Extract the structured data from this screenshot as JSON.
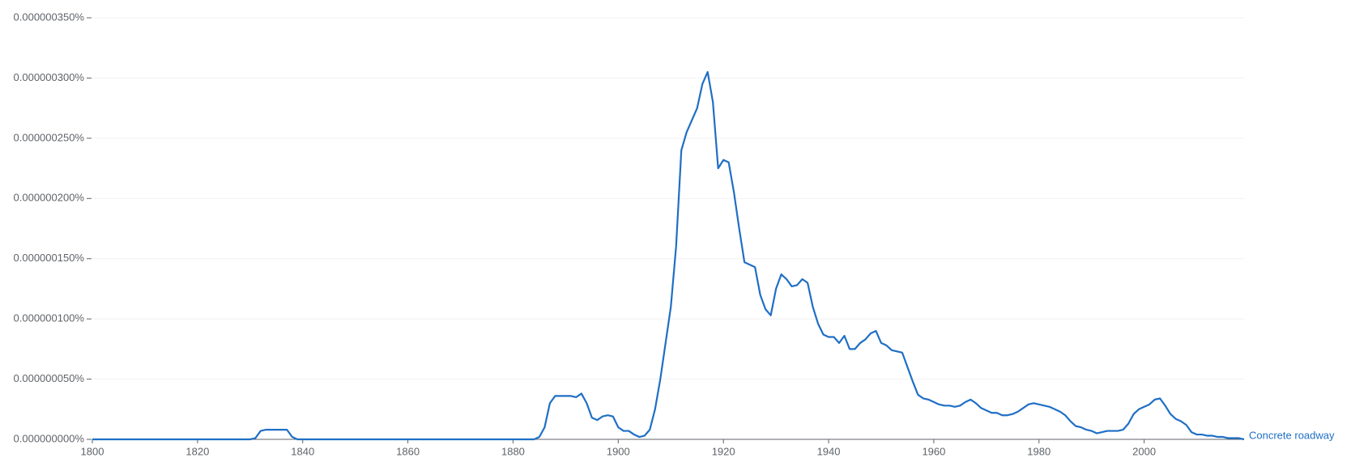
{
  "chart_data": {
    "type": "line",
    "x": [
      1800,
      1830,
      1831,
      1832,
      1833,
      1834,
      1835,
      1836,
      1837,
      1838,
      1839,
      1884,
      1885,
      1886,
      1887,
      1888,
      1889,
      1890,
      1891,
      1892,
      1893,
      1894,
      1895,
      1896,
      1897,
      1898,
      1899,
      1900,
      1901,
      1902,
      1903,
      1904,
      1905,
      1906,
      1907,
      1908,
      1909,
      1910,
      1911,
      1912,
      1913,
      1914,
      1915,
      1916,
      1917,
      1918,
      1919,
      1920,
      1921,
      1922,
      1923,
      1924,
      1925,
      1926,
      1927,
      1928,
      1929,
      1930,
      1931,
      1932,
      1933,
      1934,
      1935,
      1936,
      1937,
      1938,
      1939,
      1940,
      1941,
      1942,
      1943,
      1944,
      1945,
      1946,
      1947,
      1948,
      1949,
      1950,
      1951,
      1952,
      1953,
      1954,
      1955,
      1956,
      1957,
      1958,
      1959,
      1960,
      1961,
      1962,
      1963,
      1964,
      1965,
      1966,
      1967,
      1968,
      1969,
      1970,
      1971,
      1972,
      1973,
      1974,
      1975,
      1976,
      1977,
      1978,
      1979,
      1980,
      1981,
      1982,
      1983,
      1984,
      1985,
      1986,
      1987,
      1988,
      1989,
      1990,
      1991,
      1992,
      1993,
      1994,
      1995,
      1996,
      1997,
      1998,
      1999,
      2000,
      2001,
      2002,
      2003,
      2004,
      2005,
      2006,
      2007,
      2008,
      2009,
      2010,
      2011,
      2012,
      2013,
      2014,
      2015,
      2016,
      2017,
      2018,
      2019
    ],
    "series": [
      {
        "name": "Concrete roadway",
        "color": "#1f6fc5",
        "values": [
          0,
          0,
          1e-09,
          7e-09,
          8e-09,
          8e-09,
          8e-09,
          8e-09,
          8e-09,
          2e-09,
          0,
          0,
          2e-09,
          1e-08,
          3e-08,
          3.6e-08,
          3.6e-08,
          3.6e-08,
          3.6e-08,
          3.5e-08,
          3.8e-08,
          3e-08,
          1.8e-08,
          1.6e-08,
          1.9e-08,
          2e-08,
          1.9e-08,
          1e-08,
          7e-09,
          7e-09,
          4e-09,
          2e-09,
          3e-09,
          8e-09,
          2.5e-08,
          5e-08,
          8e-08,
          1.1e-07,
          1.6e-07,
          2.4e-07,
          2.55e-07,
          2.65e-07,
          2.75e-07,
          2.95e-07,
          3.05e-07,
          2.8e-07,
          2.25e-07,
          2.32e-07,
          2.3e-07,
          2.05e-07,
          1.75e-07,
          1.47e-07,
          1.45e-07,
          1.43e-07,
          1.2e-07,
          1.08e-07,
          1.03e-07,
          1.25e-07,
          1.37e-07,
          1.33e-07,
          1.27e-07,
          1.28e-07,
          1.33e-07,
          1.3e-07,
          1.1e-07,
          9.6e-08,
          8.7e-08,
          8.5e-08,
          8.5e-08,
          8e-08,
          8.6e-08,
          7.5e-08,
          7.5e-08,
          8e-08,
          8.3e-08,
          8.8e-08,
          9e-08,
          8e-08,
          7.8e-08,
          7.4e-08,
          7.3e-08,
          7.2e-08,
          6e-08,
          4.8e-08,
          3.7e-08,
          3.4e-08,
          3.3e-08,
          3.1e-08,
          2.9e-08,
          2.8e-08,
          2.8e-08,
          2.7e-08,
          2.8e-08,
          3.1e-08,
          3.3e-08,
          3e-08,
          2.6e-08,
          2.4e-08,
          2.2e-08,
          2.2e-08,
          2e-08,
          2e-08,
          2.1e-08,
          2.3e-08,
          2.6e-08,
          2.9e-08,
          3e-08,
          2.9e-08,
          2.8e-08,
          2.7e-08,
          2.5e-08,
          2.3e-08,
          2e-08,
          1.5e-08,
          1.1e-08,
          1e-08,
          8e-09,
          7e-09,
          5e-09,
          6e-09,
          7e-09,
          7e-09,
          7e-09,
          8e-09,
          1.3e-08,
          2.1e-08,
          2.5e-08,
          2.7e-08,
          2.9e-08,
          3.3e-08,
          3.4e-08,
          2.8e-08,
          2.1e-08,
          1.7e-08,
          1.5e-08,
          1.2e-08,
          6e-09,
          4e-09,
          4e-09,
          3e-09,
          3e-09,
          2e-09,
          2e-09,
          1e-09,
          1e-09,
          1e-09,
          0
        ]
      }
    ],
    "xlim": [
      1800,
      2019
    ],
    "xticks": [
      1800,
      1820,
      1840,
      1860,
      1880,
      1900,
      1920,
      1940,
      1960,
      1980,
      2000
    ],
    "ylim": [
      0,
      3.5e-07
    ],
    "yticks": [
      {
        "value": 0,
        "label": "0.000000000%"
      },
      {
        "value": 5e-08,
        "label": "0.000000050%"
      },
      {
        "value": 1e-07,
        "label": "0.000000100%"
      },
      {
        "value": 1.5e-07,
        "label": "0.000000150%"
      },
      {
        "value": 2e-07,
        "label": "0.000000200%"
      },
      {
        "value": 2.5e-07,
        "label": "0.000000250%"
      },
      {
        "value": 3e-07,
        "label": "0.000000300%"
      },
      {
        "value": 3.5e-07,
        "label": "0.000000350%"
      }
    ],
    "grid": true
  }
}
